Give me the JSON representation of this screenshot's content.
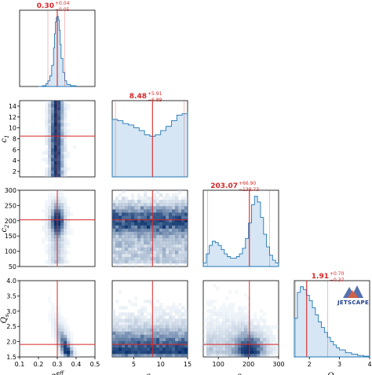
{
  "chart_data": {
    "type": "corner",
    "params": [
      {
        "key": "a",
        "label": "α_s^eff",
        "label_main": "α",
        "label_sub": "s",
        "label_sup": "eff",
        "range": [
          0.1,
          0.5
        ],
        "ticks": [
          "0.1",
          "0.2",
          "0.3",
          "0.4",
          "0.5"
        ],
        "median": 0.3,
        "plus": 0.04,
        "minus": 0.05,
        "title_main": "0.30",
        "title_plus": "+0.04",
        "title_minus": "−0.05"
      },
      {
        "key": "c1",
        "label": "c_1",
        "label_main": "c",
        "label_sub": "1",
        "label_sup": "",
        "range": [
          1,
          15
        ],
        "ticks": [
          "5",
          "10",
          "15"
        ],
        "median": 8.48,
        "plus": 5.91,
        "minus": 6.89,
        "title_main": "8.48",
        "title_plus": "+5.91",
        "title_minus": "−6.89"
      },
      {
        "key": "c2",
        "label": "c_2",
        "label_main": "c",
        "label_sub": "2",
        "label_sup": "",
        "range": [
          50,
          300
        ],
        "ticks": [
          "100",
          "200",
          "300"
        ],
        "median": 203.07,
        "plus": 66.9,
        "minus": 138.73,
        "title_main": "203.07",
        "title_plus": "+66.90",
        "title_minus": "−138.73"
      },
      {
        "key": "qs",
        "label": "Q_s",
        "label_main": "Q",
        "label_sub": "s",
        "label_sup": "",
        "range": [
          1.5,
          4.0
        ],
        "ticks": [
          "2",
          "3",
          "4"
        ],
        "median": 1.91,
        "plus": 0.7,
        "minus": 0.37,
        "title_main": "1.91",
        "title_plus": "+0.70",
        "title_minus": "−0.37"
      }
    ],
    "row_ticks": {
      "c1": [
        "2",
        "4",
        "6",
        "8",
        "10",
        "12",
        "14"
      ],
      "c2": [
        "50",
        "100",
        "150",
        "200",
        "250",
        "300"
      ],
      "qs": [
        "1.5",
        "2.0",
        "2.5",
        "3.0",
        "3.5",
        "4.0"
      ]
    },
    "row_range": {
      "c1": [
        1,
        15
      ],
      "c2": [
        50,
        300
      ],
      "qs": [
        1.5,
        4.0
      ]
    },
    "tick_values": {
      "a": [
        0.1,
        0.2,
        0.3,
        0.4,
        0.5
      ],
      "c1": [
        5,
        10,
        15
      ],
      "c2": [
        100,
        200,
        300
      ],
      "qs": [
        2,
        3,
        4
      ],
      "c1_row": [
        2,
        4,
        6,
        8,
        10,
        12,
        14
      ],
      "c2_row": [
        50,
        100,
        150,
        200,
        250,
        300
      ],
      "qs_row": [
        1.5,
        2.0,
        2.5,
        3.0,
        3.5,
        4.0
      ]
    },
    "hist_a": {
      "x": [
        0.2,
        0.22,
        0.24,
        0.25,
        0.26,
        0.27,
        0.28,
        0.285,
        0.29,
        0.295,
        0.3,
        0.305,
        0.31,
        0.315,
        0.32,
        0.33,
        0.34,
        0.35,
        0.37,
        0.4
      ],
      "y": [
        0.0,
        0.01,
        0.04,
        0.08,
        0.15,
        0.3,
        0.55,
        0.75,
        0.92,
        0.99,
        1.0,
        0.95,
        0.8,
        0.6,
        0.4,
        0.2,
        0.08,
        0.03,
        0.01,
        0.0
      ]
    },
    "hist_c1": {
      "x": [
        1,
        2,
        3,
        4,
        5,
        6,
        7,
        8,
        9,
        10,
        11,
        12,
        13,
        14,
        15
      ],
      "y": [
        0.82,
        0.8,
        0.76,
        0.74,
        0.7,
        0.66,
        0.6,
        0.58,
        0.6,
        0.66,
        0.72,
        0.8,
        0.88,
        0.9,
        0.92
      ]
    },
    "hist_c2": {
      "x": [
        50,
        60,
        70,
        80,
        90,
        100,
        110,
        120,
        130,
        140,
        150,
        160,
        170,
        180,
        190,
        200,
        210,
        220,
        230,
        240,
        250,
        260,
        270,
        280,
        290,
        300
      ],
      "y": [
        0.05,
        0.18,
        0.3,
        0.36,
        0.34,
        0.3,
        0.24,
        0.18,
        0.14,
        0.12,
        0.12,
        0.14,
        0.18,
        0.26,
        0.4,
        0.62,
        0.88,
        1.0,
        0.92,
        0.7,
        0.46,
        0.28,
        0.16,
        0.09,
        0.05,
        0.02
      ]
    },
    "hist_qs": {
      "x": [
        1.5,
        1.6,
        1.7,
        1.8,
        1.9,
        2.0,
        2.1,
        2.2,
        2.3,
        2.4,
        2.5,
        2.6,
        2.7,
        2.8,
        2.9,
        3.0,
        3.2,
        3.4,
        3.6,
        3.8,
        4.0
      ],
      "y": [
        0.55,
        0.92,
        1.0,
        0.96,
        0.88,
        0.8,
        0.7,
        0.6,
        0.5,
        0.42,
        0.35,
        0.28,
        0.22,
        0.17,
        0.13,
        0.1,
        0.06,
        0.04,
        0.02,
        0.01,
        0.0
      ]
    },
    "quantile_lines": {
      "a": [
        0.25,
        0.3,
        0.34
      ],
      "c1": [
        1.59,
        8.48,
        14.39
      ],
      "c2": [
        64.34,
        203.07,
        269.97
      ],
      "qs": [
        1.54,
        1.91,
        2.61
      ]
    },
    "colors": {
      "accent": "#d62728",
      "hist": "#1f77b4",
      "fill": "#c6dbef",
      "density_dark": "#08306b",
      "density_light": "#deebf7"
    },
    "logo": {
      "text": "JETSCAPE"
    }
  }
}
